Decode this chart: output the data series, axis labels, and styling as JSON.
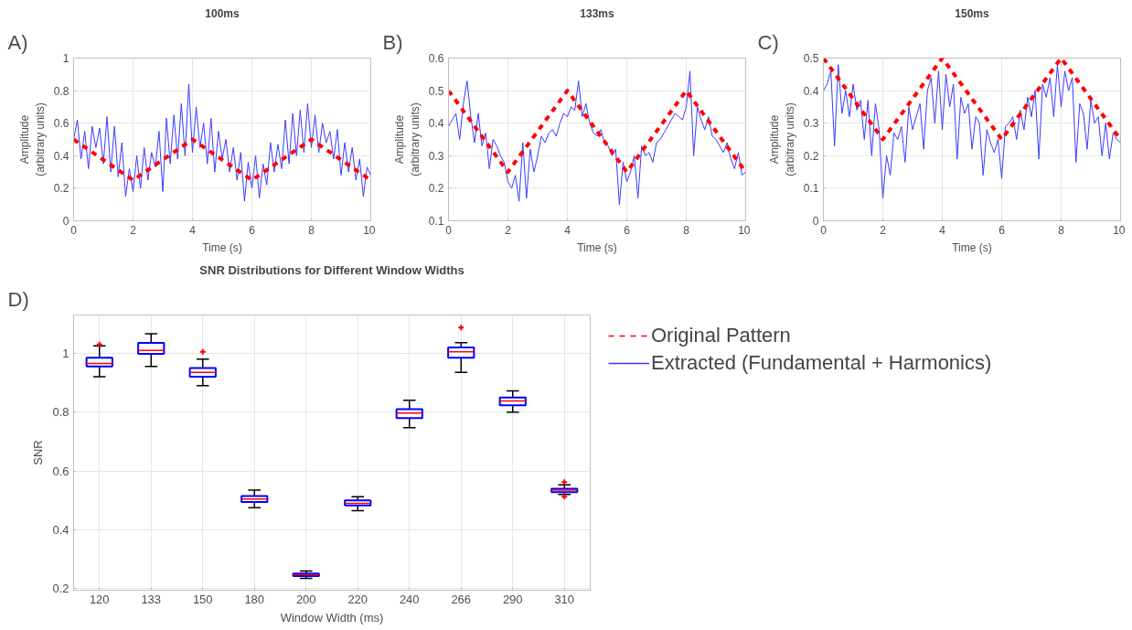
{
  "chart_data": [
    {
      "type": "line",
      "title": "100ms",
      "xlabel": "Time (s)",
      "ylabel": "Amplitude\n(arbitrary units)",
      "annotations": [
        "A)"
      ],
      "xlim": [
        0,
        10
      ],
      "ylim": [
        0,
        1
      ],
      "xticks": [
        0,
        2,
        4,
        6,
        8,
        10
      ],
      "yticks": [
        0,
        0.2,
        0.4,
        0.6,
        0.8,
        1
      ],
      "grid": true,
      "x": [
        0,
        0.125,
        0.25,
        0.375,
        0.5,
        0.625,
        0.75,
        0.875,
        1,
        1.125,
        1.25,
        1.375,
        1.5,
        1.625,
        1.75,
        1.875,
        2,
        2.125,
        2.25,
        2.375,
        2.5,
        2.625,
        2.75,
        2.875,
        3,
        3.125,
        3.25,
        3.375,
        3.5,
        3.625,
        3.75,
        3.875,
        4,
        4.125,
        4.25,
        4.375,
        4.5,
        4.625,
        4.75,
        4.875,
        5,
        5.125,
        5.25,
        5.375,
        5.5,
        5.625,
        5.75,
        5.875,
        6,
        6.125,
        6.25,
        6.375,
        6.5,
        6.625,
        6.75,
        6.875,
        7,
        7.125,
        7.25,
        7.375,
        7.5,
        7.625,
        7.75,
        7.875,
        8,
        8.125,
        8.25,
        8.375,
        8.5,
        8.625,
        8.75,
        8.875,
        9,
        9.125,
        9.25,
        9.375,
        9.5,
        9.625,
        9.75,
        9.875,
        10
      ],
      "series": [
        {
          "color": "#3c3cff",
          "values": [
            0.5,
            0.62,
            0.38,
            0.55,
            0.32,
            0.58,
            0.45,
            0.57,
            0.35,
            0.64,
            0.3,
            0.58,
            0.27,
            0.48,
            0.15,
            0.32,
            0.18,
            0.4,
            0.2,
            0.45,
            0.25,
            0.42,
            0.33,
            0.55,
            0.18,
            0.63,
            0.35,
            0.65,
            0.38,
            0.72,
            0.4,
            0.84,
            0.42,
            0.7,
            0.45,
            0.6,
            0.35,
            0.63,
            0.3,
            0.55,
            0.38,
            0.5,
            0.3,
            0.45,
            0.25,
            0.42,
            0.12,
            0.36,
            0.2,
            0.4,
            0.14,
            0.35,
            0.22,
            0.48,
            0.3,
            0.47,
            0.32,
            0.62,
            0.35,
            0.66,
            0.4,
            0.68,
            0.42,
            0.72,
            0.45,
            0.65,
            0.42,
            0.6,
            0.48,
            0.55,
            0.38,
            0.56,
            0.28,
            0.48,
            0.3,
            0.45,
            0.25,
            0.38,
            0.15,
            0.33,
            0.28
          ]
        },
        {
          "color": "#ff0000",
          "line_style": "dashed",
          "x": [
            0,
            2,
            4,
            6,
            8,
            10
          ],
          "values": [
            0.5,
            0.25,
            0.5,
            0.25,
            0.5,
            0.25
          ]
        }
      ]
    },
    {
      "type": "line",
      "title": "133ms",
      "xlabel": "Time (s)",
      "ylabel": "Amplitude\n(arbitrary units)",
      "annotations": [
        "B)"
      ],
      "xlim": [
        0,
        10
      ],
      "ylim": [
        0.1,
        0.6
      ],
      "xticks": [
        0,
        2,
        4,
        6,
        8,
        10
      ],
      "yticks": [
        0.1,
        0.2,
        0.3,
        0.4,
        0.5,
        0.6
      ],
      "grid": true,
      "x": [
        0,
        0.125,
        0.25,
        0.375,
        0.5,
        0.625,
        0.75,
        0.875,
        1,
        1.125,
        1.25,
        1.375,
        1.5,
        1.625,
        1.75,
        1.875,
        2,
        2.125,
        2.25,
        2.375,
        2.5,
        2.625,
        2.75,
        2.875,
        3,
        3.125,
        3.25,
        3.375,
        3.5,
        3.625,
        3.75,
        3.875,
        4,
        4.125,
        4.25,
        4.375,
        4.5,
        4.625,
        4.75,
        4.875,
        5,
        5.125,
        5.25,
        5.375,
        5.5,
        5.625,
        5.75,
        5.875,
        6,
        6.125,
        6.25,
        6.375,
        6.5,
        6.625,
        6.75,
        6.875,
        7,
        7.125,
        7.25,
        7.375,
        7.5,
        7.625,
        7.75,
        7.875,
        8,
        8.125,
        8.25,
        8.375,
        8.5,
        8.625,
        8.75,
        8.875,
        9,
        9.125,
        9.25,
        9.375,
        9.5,
        9.625,
        9.75,
        9.875,
        10
      ],
      "series": [
        {
          "color": "#3c3cff",
          "values": [
            0.39,
            0.41,
            0.43,
            0.35,
            0.46,
            0.53,
            0.42,
            0.34,
            0.43,
            0.33,
            0.37,
            0.26,
            0.35,
            0.33,
            0.3,
            0.28,
            0.22,
            0.2,
            0.24,
            0.16,
            0.34,
            0.17,
            0.32,
            0.25,
            0.3,
            0.36,
            0.34,
            0.37,
            0.38,
            0.36,
            0.4,
            0.43,
            0.42,
            0.45,
            0.44,
            0.53,
            0.42,
            0.46,
            0.4,
            0.37,
            0.36,
            0.38,
            0.34,
            0.33,
            0.3,
            0.32,
            0.15,
            0.28,
            0.22,
            0.25,
            0.3,
            0.17,
            0.33,
            0.3,
            0.31,
            0.28,
            0.34,
            0.35,
            0.37,
            0.39,
            0.41,
            0.43,
            0.42,
            0.41,
            0.45,
            0.56,
            0.3,
            0.45,
            0.41,
            0.38,
            0.42,
            0.36,
            0.35,
            0.33,
            0.31,
            0.34,
            0.29,
            0.26,
            0.31,
            0.24,
            0.25
          ]
        },
        {
          "color": "#ff0000",
          "line_style": "dashed",
          "x": [
            0,
            2,
            4,
            6,
            8,
            10
          ],
          "values": [
            0.5,
            0.25,
            0.5,
            0.25,
            0.5,
            0.25
          ]
        }
      ]
    },
    {
      "type": "line",
      "title": "150ms",
      "xlabel": "Time (s)",
      "ylabel": "Amplitude\n(arbitrary units)",
      "annotations": [
        "C)"
      ],
      "xlim": [
        0,
        10
      ],
      "ylim": [
        0,
        0.5
      ],
      "xticks": [
        0,
        2,
        4,
        6,
        8,
        10
      ],
      "yticks": [
        0,
        0.1,
        0.2,
        0.3,
        0.4,
        0.5
      ],
      "grid": true,
      "legend": "bottom",
      "x": [
        0,
        0.125,
        0.25,
        0.375,
        0.5,
        0.625,
        0.75,
        0.875,
        1,
        1.125,
        1.25,
        1.375,
        1.5,
        1.625,
        1.75,
        1.875,
        2,
        2.125,
        2.25,
        2.375,
        2.5,
        2.625,
        2.75,
        2.875,
        3,
        3.125,
        3.25,
        3.375,
        3.5,
        3.625,
        3.75,
        3.875,
        4,
        4.125,
        4.25,
        4.375,
        4.5,
        4.625,
        4.75,
        4.875,
        5,
        5.125,
        5.25,
        5.375,
        5.5,
        5.625,
        5.75,
        5.875,
        6,
        6.125,
        6.25,
        6.375,
        6.5,
        6.625,
        6.75,
        6.875,
        7,
        7.125,
        7.25,
        7.375,
        7.5,
        7.625,
        7.75,
        7.875,
        8,
        8.125,
        8.25,
        8.375,
        8.5,
        8.625,
        8.75,
        8.875,
        9,
        9.125,
        9.25,
        9.375,
        9.5,
        9.625,
        9.75,
        9.875,
        10
      ],
      "series": [
        {
          "name": "Extracted (Fundamental + Harmonics)",
          "color": "#3c3cff",
          "values": [
            0.4,
            0.42,
            0.46,
            0.23,
            0.48,
            0.33,
            0.4,
            0.32,
            0.42,
            0.34,
            0.37,
            0.25,
            0.37,
            0.2,
            0.36,
            0.28,
            0.07,
            0.2,
            0.14,
            0.27,
            0.25,
            0.29,
            0.18,
            0.35,
            0.28,
            0.32,
            0.36,
            0.22,
            0.4,
            0.44,
            0.3,
            0.46,
            0.28,
            0.45,
            0.35,
            0.42,
            0.19,
            0.38,
            0.33,
            0.36,
            0.22,
            0.32,
            0.3,
            0.14,
            0.28,
            0.24,
            0.21,
            0.25,
            0.13,
            0.29,
            0.3,
            0.32,
            0.25,
            0.34,
            0.28,
            0.38,
            0.32,
            0.4,
            0.19,
            0.42,
            0.38,
            0.44,
            0.32,
            0.48,
            0.35,
            0.46,
            0.4,
            0.44,
            0.18,
            0.36,
            0.33,
            0.22,
            0.37,
            0.3,
            0.32,
            0.2,
            0.3,
            0.19,
            0.27,
            0.25,
            0.24
          ]
        },
        {
          "name": "Original Pattern",
          "color": "#ff0000",
          "line_style": "dashed",
          "x": [
            0,
            2,
            4,
            6,
            8,
            10
          ],
          "values": [
            0.5,
            0.25,
            0.5,
            0.25,
            0.5,
            0.25
          ]
        }
      ]
    },
    {
      "type": "box",
      "title": "SNR Distributions for Different Window Widths",
      "xlabel": "Window Width (ms)",
      "ylabel": "SNR",
      "annotations": [
        "D)"
      ],
      "categories": [
        "120",
        "133",
        "150",
        "180",
        "200",
        "220",
        "240",
        "266",
        "290",
        "310"
      ],
      "ylim": [
        0.195,
        1.13
      ],
      "yticks": [
        0.2,
        0.4,
        0.6,
        0.8,
        1
      ],
      "grid": true,
      "series": [
        {
          "color": "#0000ff",
          "boxes": [
            {
              "low": 0.92,
              "q1": 0.955,
              "median": 0.965,
              "q3": 0.985,
              "high": 1.025,
              "outliers": [
                1.03
              ]
            },
            {
              "low": 0.955,
              "q1": 0.998,
              "median": 1.01,
              "q3": 1.035,
              "high": 1.066
            },
            {
              "low": 0.89,
              "q1": 0.92,
              "median": 0.935,
              "q3": 0.95,
              "high": 0.98,
              "outliers": [
                1.005
              ]
            },
            {
              "low": 0.475,
              "q1": 0.495,
              "median": 0.505,
              "q3": 0.515,
              "high": 0.535
            },
            {
              "low": 0.235,
              "q1": 0.243,
              "median": 0.248,
              "q3": 0.252,
              "high": 0.26
            },
            {
              "low": 0.465,
              "q1": 0.483,
              "median": 0.49,
              "q3": 0.5,
              "high": 0.513
            },
            {
              "low": 0.747,
              "q1": 0.78,
              "median": 0.797,
              "q3": 0.81,
              "high": 0.84
            },
            {
              "low": 0.935,
              "q1": 0.985,
              "median": 1.005,
              "q3": 1.02,
              "high": 1.036,
              "outliers": [
                1.087
              ]
            },
            {
              "low": 0.8,
              "q1": 0.823,
              "median": 0.838,
              "q3": 0.85,
              "high": 0.872
            },
            {
              "low": 0.52,
              "q1": 0.528,
              "median": 0.535,
              "q3": 0.54,
              "high": 0.553,
              "outliers": [
                0.562,
                0.513
              ]
            }
          ]
        }
      ]
    }
  ]
}
